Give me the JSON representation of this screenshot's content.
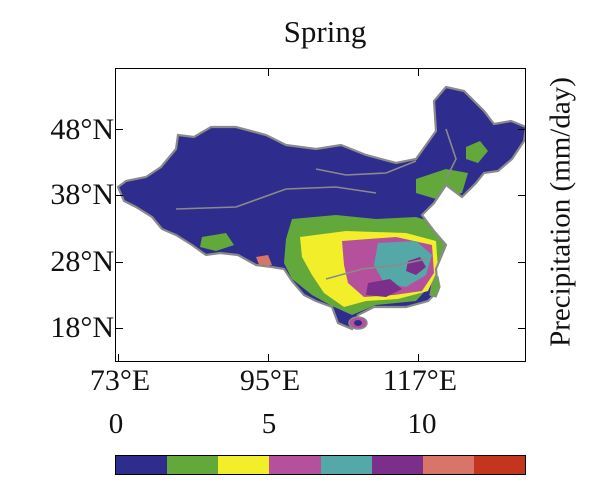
{
  "title": "Spring",
  "axes": {
    "lat_ticks": [
      "48°N",
      "38°N",
      "28°N",
      "18°N"
    ],
    "lon_ticks": [
      "73°E",
      "95°E",
      "117°E"
    ]
  },
  "colorbar": {
    "label": "Precipitation (mm/day)",
    "tick_labels": [
      "0",
      "5",
      "10"
    ],
    "bins": [
      "#2e2d8e",
      "#63a83a",
      "#f2ee2a",
      "#b5509c",
      "#55a8a8",
      "#7b2f8a",
      "#d97468",
      "#c4351e"
    ]
  },
  "map_colors": {
    "low": "#2e2d8e",
    "green": "#63a83a",
    "yellow": "#f2ee2a",
    "magenta": "#b5509c",
    "teal": "#55a8a8",
    "purple": "#7b2f8a",
    "salmon": "#d97468",
    "border": "#8a8a8a"
  }
}
